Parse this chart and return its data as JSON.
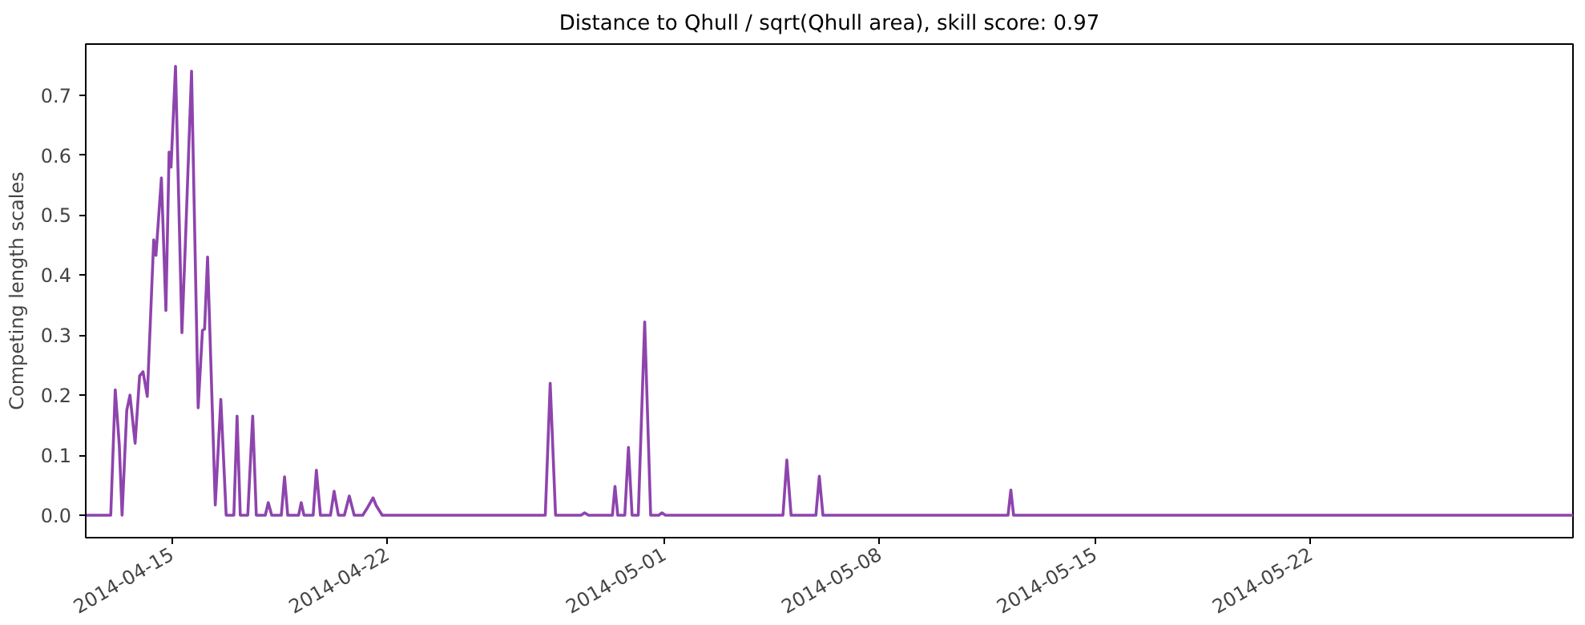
{
  "chart_data": {
    "type": "line",
    "title": "Distance to Qhull / sqrt(Qhull area), skill score: 0.97",
    "ylabel": "Competing length scales",
    "x": [
      "2014-04-12T05:00",
      "2014-04-13T00:30",
      "2014-04-13T04:00",
      "2014-04-13T07:10",
      "2014-04-13T09:20",
      "2014-04-13T13:00",
      "2014-04-13T15:30",
      "2014-04-13T19:30",
      "2014-04-13T23:00",
      "2014-04-14T01:40",
      "2014-04-14T05:00",
      "2014-04-14T10:00",
      "2014-04-14T11:45",
      "2014-04-14T16:00",
      "2014-04-14T19:30",
      "2014-04-14T22:00",
      "2014-04-14T23:30",
      "2014-04-15T03:00",
      "2014-04-15T08:00",
      "2014-04-15T10:30",
      "2014-04-15T15:30",
      "2014-04-15T20:40",
      "2014-04-16T00:00",
      "2014-04-16T01:40",
      "2014-04-16T04:00",
      "2014-04-16T10:00",
      "2014-04-16T14:20",
      "2014-04-16T18:30",
      "2014-04-17T00:30",
      "2014-04-17T03:00",
      "2014-04-17T05:30",
      "2014-04-17T11:20",
      "2014-04-17T15:10",
      "2014-04-17T18:00",
      "2014-04-18T01:00",
      "2014-04-18T03:20",
      "2014-04-18T06:00",
      "2014-04-18T13:30",
      "2014-04-18T16:00",
      "2014-04-18T18:30",
      "2014-04-19T03:00",
      "2014-04-19T05:00",
      "2014-04-19T07:10",
      "2014-04-19T14:20",
      "2014-04-19T16:50",
      "2014-04-19T20:00",
      "2014-04-20T03:50",
      "2014-04-20T06:40",
      "2014-04-20T10:00",
      "2014-04-20T14:40",
      "2014-04-20T18:30",
      "2014-04-20T22:20",
      "2014-04-21T05:00",
      "2014-04-21T08:50",
      "2014-04-21T13:00",
      "2014-04-21T15:30",
      "2014-04-21T20:10",
      "2014-04-27T03:20",
      "2014-04-27T07:10",
      "2014-04-27T11:20",
      "2014-04-28T07:10",
      "2014-04-28T10:00",
      "2014-04-28T13:00",
      "2014-04-29T07:40",
      "2014-04-29T09:40",
      "2014-04-29T11:50",
      "2014-04-29T17:20",
      "2014-04-29T20:10",
      "2014-04-29T23:00",
      "2014-04-30T03:50",
      "2014-04-30T08:50",
      "2014-04-30T13:30",
      "2014-04-30T19:50",
      "2014-04-30T22:20",
      "2014-05-01T01:00",
      "2014-05-04T20:40",
      "2014-05-04T23:40",
      "2014-05-05T03:00",
      "2014-05-05T22:20",
      "2014-05-06T01:00",
      "2014-05-06T03:50",
      "2014-05-12T04:10",
      "2014-05-12T06:20",
      "2014-05-12T08:30",
      "2014-05-30T12:40"
    ],
    "series": [
      {
        "color": "#8e44ad",
        "values": [
          0,
          0,
          0.209,
          0.117,
          0,
          0.175,
          0.2,
          0.12,
          0.232,
          0.239,
          0.198,
          0.459,
          0.433,
          0.562,
          0.341,
          0.605,
          0.58,
          0.748,
          0.304,
          0.442,
          0.74,
          0.179,
          0.308,
          0.31,
          0.43,
          0.017,
          0.193,
          0,
          0,
          0.165,
          0,
          0,
          0.165,
          0,
          0,
          0.021,
          0,
          0,
          0.064,
          0,
          0,
          0.021,
          0,
          0,
          0.075,
          0,
          0,
          0.04,
          0,
          0,
          0.032,
          0,
          0,
          0.013,
          0.029,
          0.016,
          0,
          0,
          0.22,
          0,
          0,
          0.004,
          0,
          0,
          0.048,
          0,
          0,
          0.113,
          0,
          0,
          0.322,
          0,
          0,
          0.004,
          0,
          0,
          0.092,
          0,
          0,
          0.065,
          0,
          0,
          0.042,
          0,
          0
        ]
      }
    ],
    "xlim": [
      "2014-04-12T05:00",
      "2014-05-30T12:40"
    ],
    "ylim": [
      -0.0374,
      0.785
    ],
    "xticks": [
      "2014-04-15",
      "2014-04-22",
      "2014-05-01",
      "2014-05-08",
      "2014-05-15",
      "2014-05-22"
    ],
    "yticks": [
      {
        "value": 0,
        "label": "0.0"
      },
      {
        "value": 0.1,
        "label": "0.1"
      },
      {
        "value": 0.2,
        "label": "0.2"
      },
      {
        "value": 0.3,
        "label": "0.3"
      },
      {
        "value": 0.4,
        "label": "0.4"
      },
      {
        "value": 0.5,
        "label": "0.5"
      },
      {
        "value": 0.6,
        "label": "0.6"
      },
      {
        "value": 0.7,
        "label": "0.7"
      }
    ],
    "grid": false
  }
}
